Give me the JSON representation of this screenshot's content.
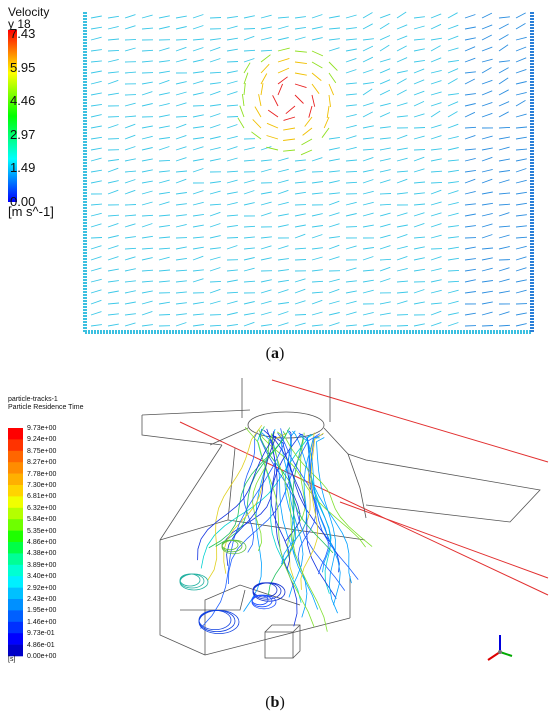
{
  "panel_a": {
    "legend_title": "Velocity",
    "legend_subtitle": "y 18",
    "legend_unit": "[m s^-1]",
    "ticks": [
      "7.43",
      "5.95",
      "4.46",
      "2.97",
      "1.49",
      "0.00"
    ],
    "colors": [
      "#ff0000",
      "#ffff00",
      "#00ff00",
      "#00ffff",
      "#0000ff"
    ]
  },
  "panel_b": {
    "legend_title": "particle-tracks-1",
    "legend_subtitle": "Particle Residence Time",
    "legend_unit": "[s]",
    "ticks": [
      "9.73e+00",
      "9.24e+00",
      "8.75e+00",
      "8.27e+00",
      "7.78e+00",
      "7.30e+00",
      "6.81e+00",
      "6.32e+00",
      "5.84e+00",
      "5.35e+00",
      "4.86e+00",
      "4.38e+00",
      "3.89e+00",
      "3.40e+00",
      "2.92e+00",
      "2.43e+00",
      "1.95e+00",
      "1.46e+00",
      "9.73e-01",
      "4.86e-01",
      "0.00e+00"
    ],
    "band_colors": [
      "#ff0000",
      "#ff3300",
      "#ff6600",
      "#ff8c00",
      "#ffb000",
      "#ffd400",
      "#f0ff00",
      "#b4ff00",
      "#6eff00",
      "#1eff00",
      "#00ff46",
      "#00ff96",
      "#00ffd2",
      "#00f0ff",
      "#00c0ff",
      "#0090ff",
      "#0060ff",
      "#0030ff",
      "#0000ff",
      "#0000c8"
    ]
  },
  "captions": {
    "a_letter": "a",
    "b_letter": "b"
  }
}
